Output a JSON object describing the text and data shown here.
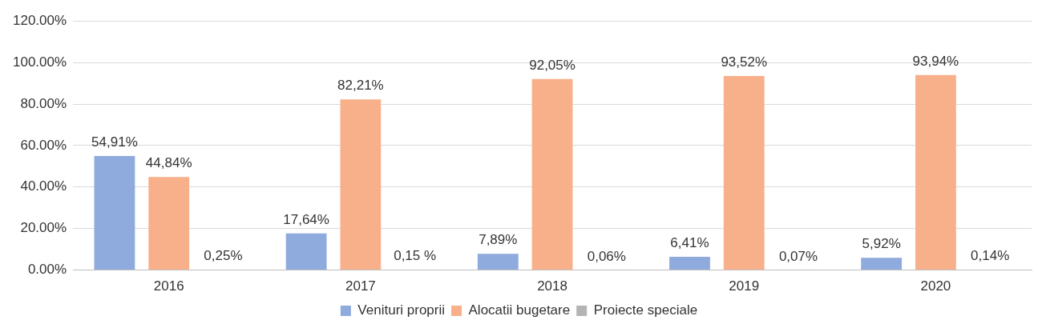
{
  "chart_data": {
    "type": "bar",
    "categories": [
      "2016",
      "2017",
      "2018",
      "2019",
      "2020"
    ],
    "series": [
      {
        "name": "Venituri proprii",
        "color": "#8faadc",
        "values": [
          54.91,
          17.64,
          7.89,
          6.41,
          5.92
        ],
        "value_labels": [
          "54,91%",
          "17,64%",
          "7,89%",
          "6,41%",
          "5,92%"
        ]
      },
      {
        "name": "Alocatii bugetare",
        "color": "#f8b08a",
        "values": [
          44.84,
          82.21,
          92.05,
          93.52,
          93.94
        ],
        "value_labels": [
          "44,84%",
          "82,21%",
          "92,05%",
          "93,52%",
          "93,94%"
        ]
      },
      {
        "name": "Proiecte speciale",
        "color": "#b4b4b4",
        "values": [
          0.25,
          0.15,
          0.06,
          0.07,
          0.14
        ],
        "value_labels": [
          "0,25%",
          "0,15 %",
          "0,06%",
          "0,07%",
          "0,14%"
        ]
      }
    ],
    "ylim": [
      0,
      120
    ],
    "yticks": [
      {
        "value": 0,
        "label": "0.00%"
      },
      {
        "value": 20,
        "label": "20.00%"
      },
      {
        "value": 40,
        "label": "40.00%"
      },
      {
        "value": 60,
        "label": "60.00%"
      },
      {
        "value": 80,
        "label": "80.00%"
      },
      {
        "value": 100,
        "label": "100.00%"
      },
      {
        "value": 120,
        "label": "120.00%"
      }
    ],
    "grid": "y",
    "legend": "bottom"
  }
}
